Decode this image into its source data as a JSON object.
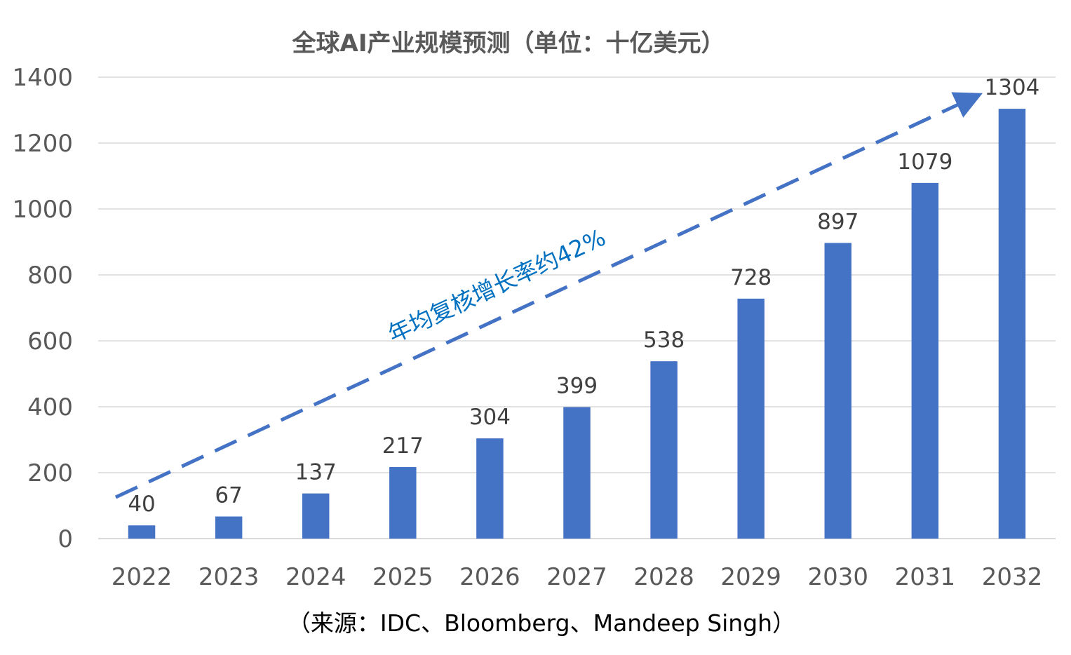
{
  "chart_data": {
    "type": "bar",
    "title": "全球AI产业规模预测（单位：十亿美元）",
    "categories": [
      "2022",
      "2023",
      "2024",
      "2025",
      "2026",
      "2027",
      "2028",
      "2029",
      "2030",
      "2031",
      "2032"
    ],
    "values": [
      40,
      67,
      137,
      217,
      304,
      399,
      538,
      728,
      897,
      1079,
      1304
    ],
    "ylim": [
      0,
      1400
    ],
    "yticks": [
      0,
      200,
      400,
      600,
      800,
      1000,
      1200,
      1400
    ],
    "grid": true,
    "legend": "none",
    "bar_color": "#4472c4",
    "trend_annotation": {
      "label": "年均复核增长率约42%",
      "style": "dashed-arrow",
      "color": "#4472c4",
      "label_color": "#0070c0"
    },
    "source_note": "（来源：IDC、Bloomberg、Mandeep Singh）"
  }
}
